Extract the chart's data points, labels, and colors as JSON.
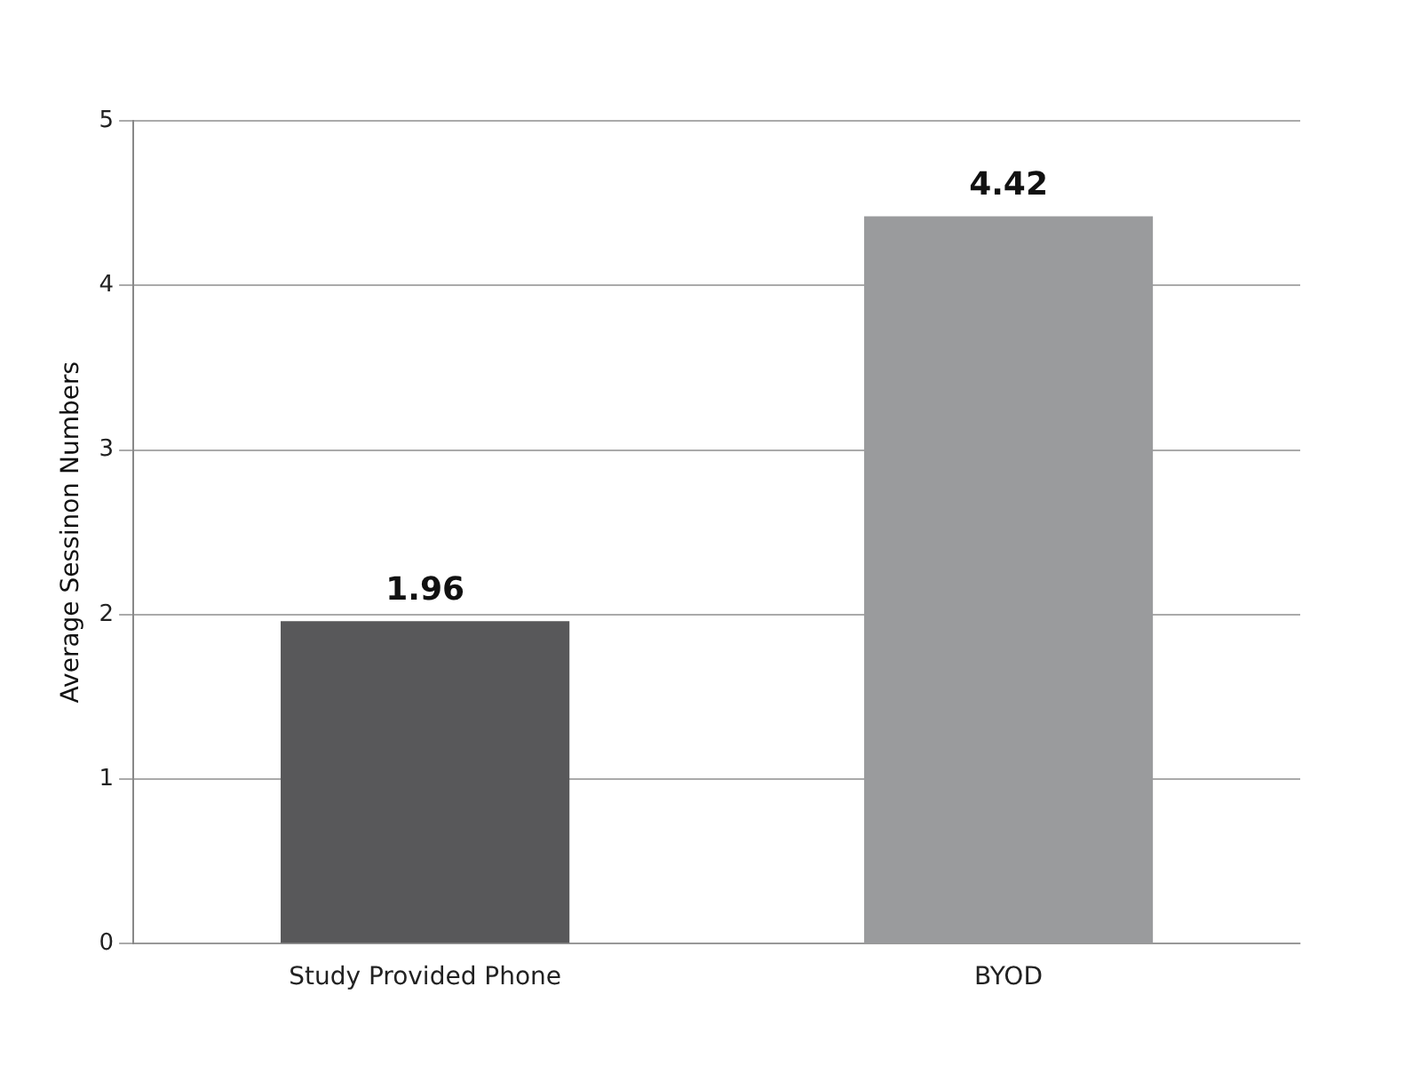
{
  "chart_data": {
    "type": "bar",
    "ylabel": "Average Sessinon Numbers",
    "categories": [
      "Study Provided Phone",
      "BYOD"
    ],
    "values": [
      1.96,
      4.42
    ],
    "colors": [
      "#58585a",
      "#9a9b9d"
    ],
    "ylim": [
      0,
      5
    ],
    "yticks": [
      0,
      1,
      2,
      3,
      4,
      5
    ],
    "grid": "y",
    "data_labels": true
  }
}
